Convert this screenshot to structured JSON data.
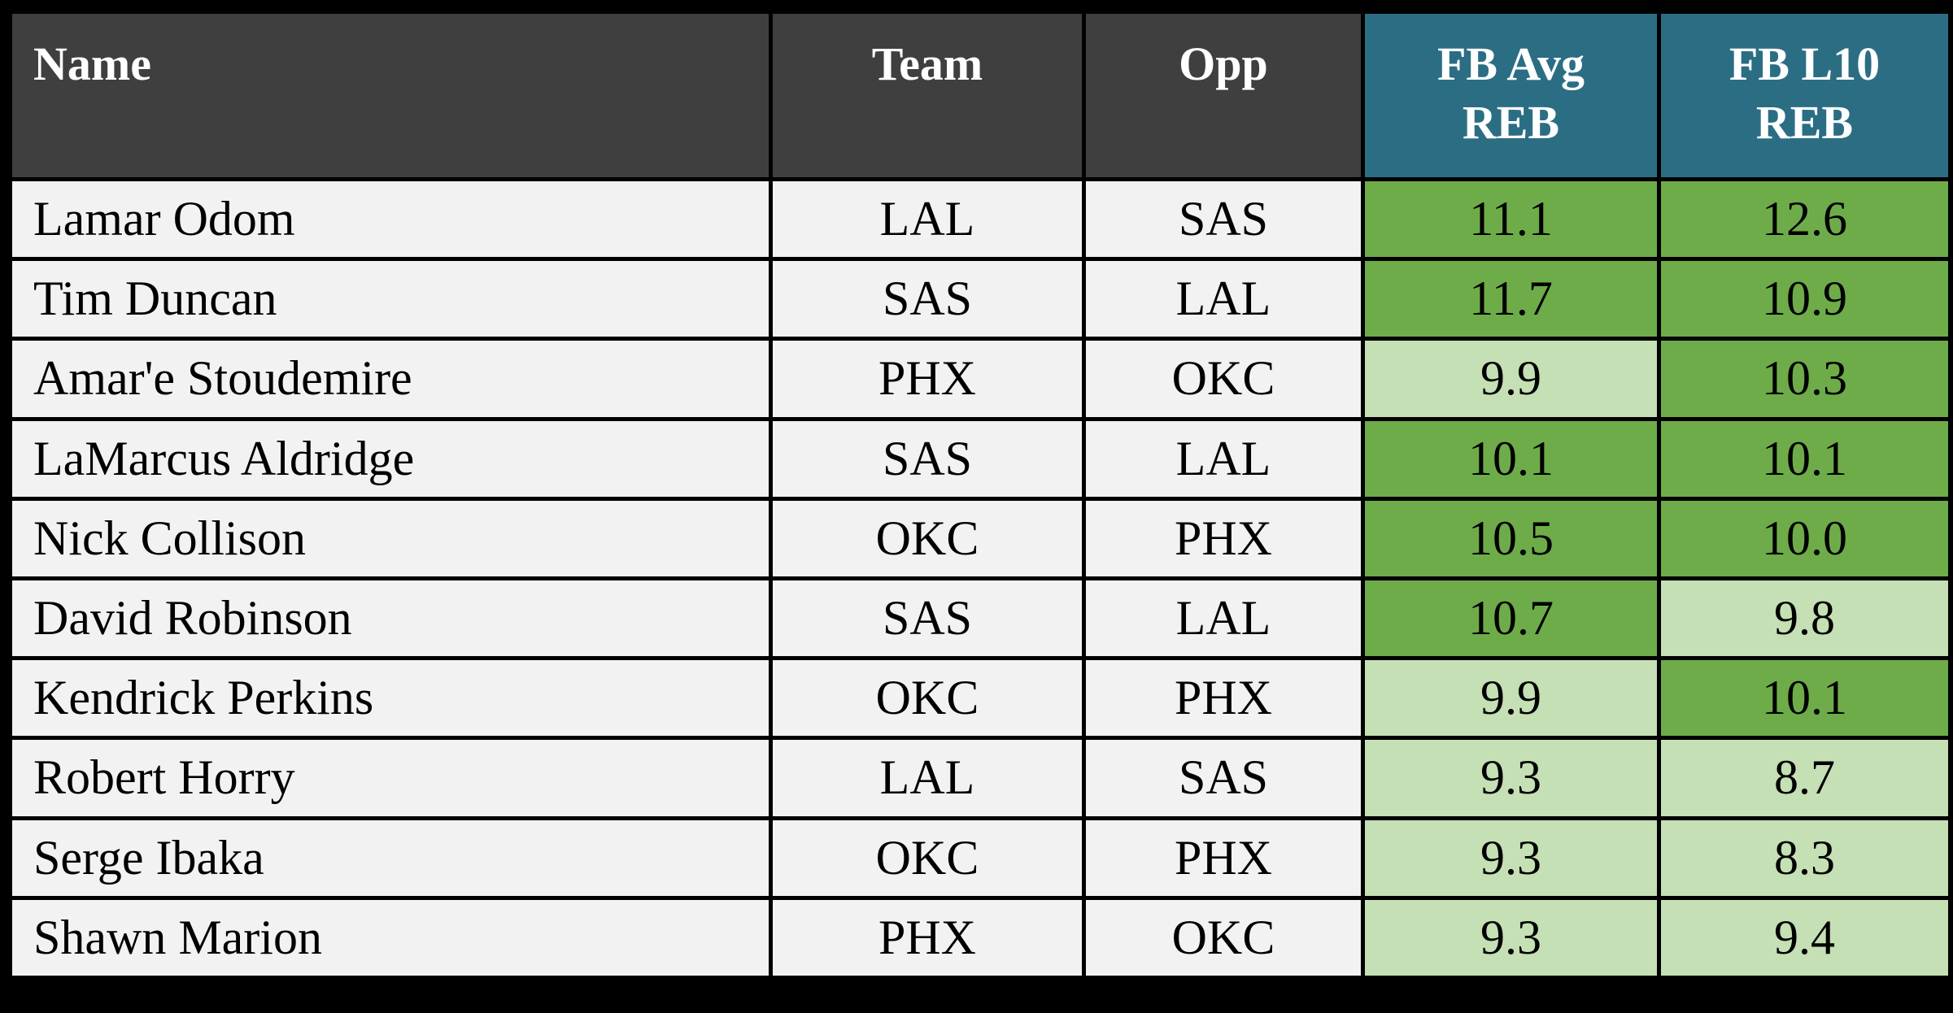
{
  "chart_data": {
    "type": "table",
    "columns": [
      {
        "key": "name",
        "label": "Name",
        "align": "left",
        "header_style": "dark",
        "numeric": false
      },
      {
        "key": "team",
        "label": "Team",
        "align": "center",
        "header_style": "dark",
        "numeric": false
      },
      {
        "key": "opp",
        "label": "Opp",
        "align": "center",
        "header_style": "dark",
        "numeric": false
      },
      {
        "key": "fb_avg",
        "label": "FB Avg\nREB",
        "align": "center",
        "header_style": "teal",
        "numeric": true
      },
      {
        "key": "fb_l10",
        "label": "FB L10\nREB",
        "align": "center",
        "header_style": "teal",
        "numeric": true
      }
    ],
    "rows": [
      {
        "name": "Lamar Odom",
        "team": "LAL",
        "opp": "SAS",
        "fb_avg": "11.1",
        "fb_l10": "12.6"
      },
      {
        "name": "Tim Duncan",
        "team": "SAS",
        "opp": "LAL",
        "fb_avg": "11.7",
        "fb_l10": "10.9"
      },
      {
        "name": "Amar'e Stoudemire",
        "team": "PHX",
        "opp": "OKC",
        "fb_avg": "9.9",
        "fb_l10": "10.3"
      },
      {
        "name": "LaMarcus Aldridge",
        "team": "SAS",
        "opp": "LAL",
        "fb_avg": "10.1",
        "fb_l10": "10.1"
      },
      {
        "name": "Nick Collison",
        "team": "OKC",
        "opp": "PHX",
        "fb_avg": "10.5",
        "fb_l10": "10.0"
      },
      {
        "name": "David Robinson",
        "team": "SAS",
        "opp": "LAL",
        "fb_avg": "10.7",
        "fb_l10": "9.8"
      },
      {
        "name": "Kendrick Perkins",
        "team": "OKC",
        "opp": "PHX",
        "fb_avg": "9.9",
        "fb_l10": "10.1"
      },
      {
        "name": "Robert Horry",
        "team": "LAL",
        "opp": "SAS",
        "fb_avg": "9.3",
        "fb_l10": "8.7"
      },
      {
        "name": "Serge Ibaka",
        "team": "OKC",
        "opp": "PHX",
        "fb_avg": "9.3",
        "fb_l10": "8.3"
      },
      {
        "name": "Shawn Marion",
        "team": "PHX",
        "opp": "OKC",
        "fb_avg": "9.3",
        "fb_l10": "9.4"
      }
    ],
    "value_shading": {
      "threshold": 10,
      "rule": "numeric cells >= threshold get dark green, below threshold get light green"
    }
  },
  "colors": {
    "page_background": "#000000",
    "border": "#000000",
    "header_dark_bg": "#3F3F3F",
    "header_teal_bg": "#2B6E84",
    "header_text": "#FFFFFF",
    "row_bg": "#F2F2F2",
    "cell_text": "#000000",
    "value_high_bg": "#6EAC49",
    "value_low_bg": "#C5E0B4"
  }
}
